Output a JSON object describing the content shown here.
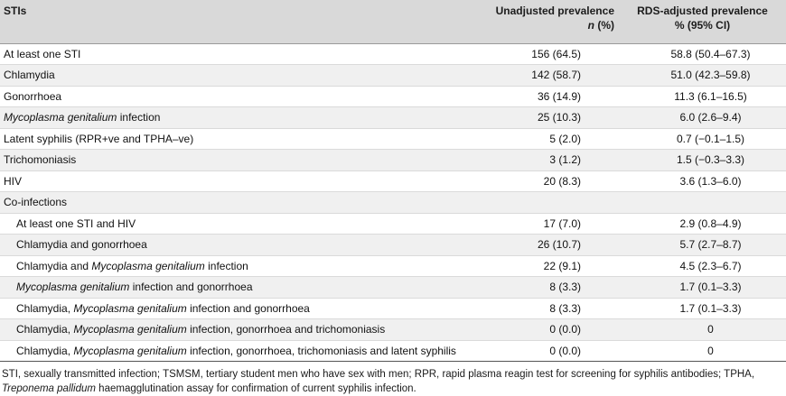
{
  "header": {
    "col1": "STIs",
    "col2_line1": "Unadjusted prevalence",
    "col2_line2_italic": "n",
    "col2_line2_rest": " (%)",
    "col3_line1": "RDS-adjusted prevalence",
    "col3_line2": "% (95% CI)"
  },
  "rows": [
    {
      "pre": "At least one STI",
      "it": "",
      "post": "",
      "unadj": "156 (64.5)",
      "adj": "58.8 (50.4–67.3)",
      "indent": false
    },
    {
      "pre": "Chlamydia",
      "it": "",
      "post": "",
      "unadj": "142 (58.7)",
      "adj": "51.0 (42.3–59.8)",
      "indent": false
    },
    {
      "pre": "Gonorrhoea",
      "it": "",
      "post": "",
      "unadj": "36 (14.9)",
      "adj": "11.3 (6.1–16.5)",
      "indent": false
    },
    {
      "pre": "",
      "it": "Mycoplasma genitalium",
      "post": " infection",
      "unadj": "25 (10.3)",
      "adj": "6.0 (2.6–9.4)",
      "indent": false
    },
    {
      "pre": "Latent syphilis (RPR+ve and TPHA–ve)",
      "it": "",
      "post": "",
      "unadj": "5 (2.0)",
      "adj": "0.7 (−0.1–1.5)",
      "indent": false
    },
    {
      "pre": "Trichomoniasis",
      "it": "",
      "post": "",
      "unadj": "3 (1.2)",
      "adj": "1.5 (−0.3–3.3)",
      "indent": false
    },
    {
      "pre": "HIV",
      "it": "",
      "post": "",
      "unadj": "20 (8.3)",
      "adj": "3.6 (1.3–6.0)",
      "indent": false
    },
    {
      "pre": "Co-infections",
      "it": "",
      "post": "",
      "unadj": "",
      "adj": "",
      "indent": false
    },
    {
      "pre": "At least one STI and HIV",
      "it": "",
      "post": "",
      "unadj": "17 (7.0)",
      "adj": "2.9 (0.8–4.9)",
      "indent": true
    },
    {
      "pre": "Chlamydia and gonorrhoea",
      "it": "",
      "post": "",
      "unadj": "26 (10.7)",
      "adj": "5.7 (2.7–8.7)",
      "indent": true
    },
    {
      "pre": "Chlamydia and ",
      "it": "Mycoplasma genitalium",
      "post": " infection",
      "unadj": "22 (9.1)",
      "adj": "4.5 (2.3–6.7)",
      "indent": true
    },
    {
      "pre": "",
      "it": "Mycoplasma genitalium",
      "post": " infection and gonorrhoea",
      "unadj": "8 (3.3)",
      "adj": "1.7 (0.1–3.3)",
      "indent": true
    },
    {
      "pre": "Chlamydia, ",
      "it": "Mycoplasma genitalium",
      "post": " infection and gonorrhoea",
      "unadj": "8 (3.3)",
      "adj": "1.7 (0.1–3.3)",
      "indent": true
    },
    {
      "pre": "Chlamydia, ",
      "it": "Mycoplasma genitalium",
      "post": " infection, gonorrhoea and trichomoniasis",
      "unadj": "0 (0.0)",
      "adj": "0",
      "indent": true
    },
    {
      "pre": "Chlamydia, ",
      "it": "Mycoplasma genitalium",
      "post": " infection, gonorrhoea, trichomoniasis and latent syphilis",
      "unadj": "0 (0.0)",
      "adj": "0",
      "indent": true
    }
  ],
  "footnote": {
    "line1": "STI, sexually transmitted infection; TSMSM, tertiary student men who have sex with men; RPR, rapid plasma reagin test for screening for syphilis antibodies; TPHA,",
    "line2_italic": "Treponema pallidum",
    "line2_rest": " haemagglutination assay for confirmation of current syphilis infection."
  }
}
